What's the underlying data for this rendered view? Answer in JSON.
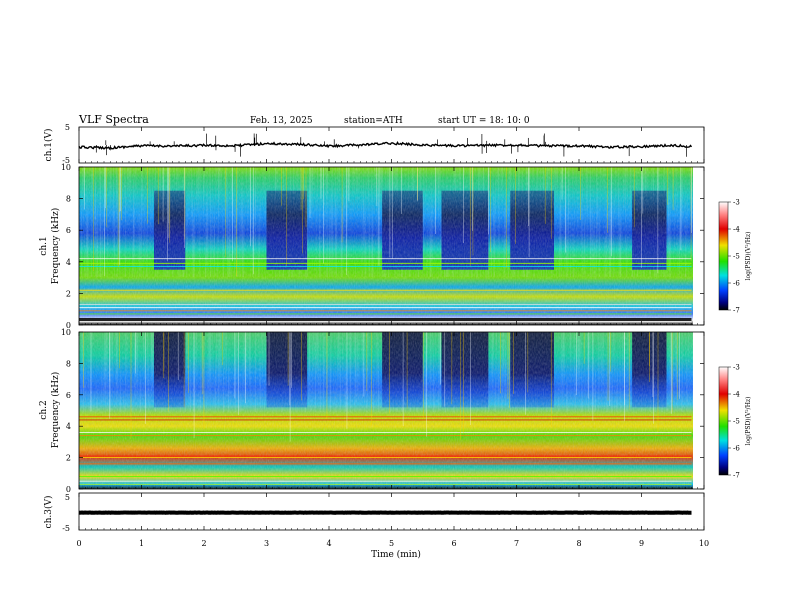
{
  "header": {
    "title": "VLF  Spectra",
    "date": "Feb. 13, 2025",
    "station": "station=ATH",
    "start": "start  UT  =   18: 10: 0"
  },
  "chart_data": [
    {
      "type": "line",
      "panel": "ch1-waveform",
      "ylabel": "ch.1(V)",
      "ylim": [
        -5,
        5
      ],
      "yticks": [
        5,
        -5
      ],
      "approx_level": 0.0,
      "x": [
        0,
        0.5,
        1,
        1.5,
        2,
        2.5,
        3,
        3.5,
        4,
        4.5,
        5,
        5.5,
        6,
        6.5,
        7,
        7.5,
        8,
        8.5,
        9,
        9.5,
        9.8
      ],
      "y": [
        -0.6,
        -0.8,
        -0.2,
        -0.3,
        -0.1,
        -0.2,
        0.4,
        0.2,
        -0.3,
        0.0,
        0.5,
        0.0,
        -0.2,
        -0.1,
        0.0,
        -0.3,
        -0.2,
        -0.6,
        -0.4,
        -0.1,
        -0.4
      ]
    },
    {
      "type": "heatmap",
      "panel": "ch1-spectrogram",
      "ylabel": "ch.1\nFrequency (kHz)",
      "ylim": [
        0,
        10
      ],
      "yticks": [
        0,
        2,
        4,
        6,
        8,
        10
      ],
      "colorbar": {
        "label": "log(PSD)(V²/Hz)",
        "range": [
          -7,
          -3
        ],
        "ticks": [
          -3,
          -4,
          -5,
          -6,
          -7
        ]
      },
      "quiet_intervals_min": [
        [
          1.2,
          1.7
        ],
        [
          3.0,
          3.65
        ],
        [
          4.85,
          5.5
        ],
        [
          5.8,
          6.55
        ],
        [
          6.9,
          7.6
        ],
        [
          8.85,
          9.4
        ]
      ]
    },
    {
      "type": "heatmap",
      "panel": "ch2-spectrogram",
      "ylabel": "ch.2\nFrequency (kHz)",
      "ylim": [
        0,
        10
      ],
      "yticks": [
        0,
        2,
        4,
        6,
        8,
        10
      ],
      "colorbar": {
        "label": "log(PSD)(V²/Hz)",
        "range": [
          -7,
          -3
        ],
        "ticks": [
          -3,
          -4,
          -5,
          -6,
          -7
        ]
      },
      "quiet_intervals_min": [
        [
          1.2,
          1.7
        ],
        [
          3.0,
          3.65
        ],
        [
          4.85,
          5.5
        ],
        [
          5.8,
          6.55
        ],
        [
          6.9,
          7.6
        ],
        [
          8.85,
          9.4
        ]
      ]
    },
    {
      "type": "line",
      "panel": "ch3-waveform",
      "ylabel": "ch.3(V)",
      "ylim": [
        -5,
        5
      ],
      "yticks": [
        5,
        -5
      ],
      "x": [
        0,
        9.8
      ],
      "y": [
        -0.3,
        -0.3
      ]
    }
  ],
  "xaxis": {
    "label": "Time  (min)",
    "ticks": [
      "0",
      "1",
      "2",
      "3",
      "4",
      "5",
      "6",
      "7",
      "8",
      "9",
      "10"
    ],
    "range": [
      0,
      10
    ],
    "data_end": 9.8
  }
}
